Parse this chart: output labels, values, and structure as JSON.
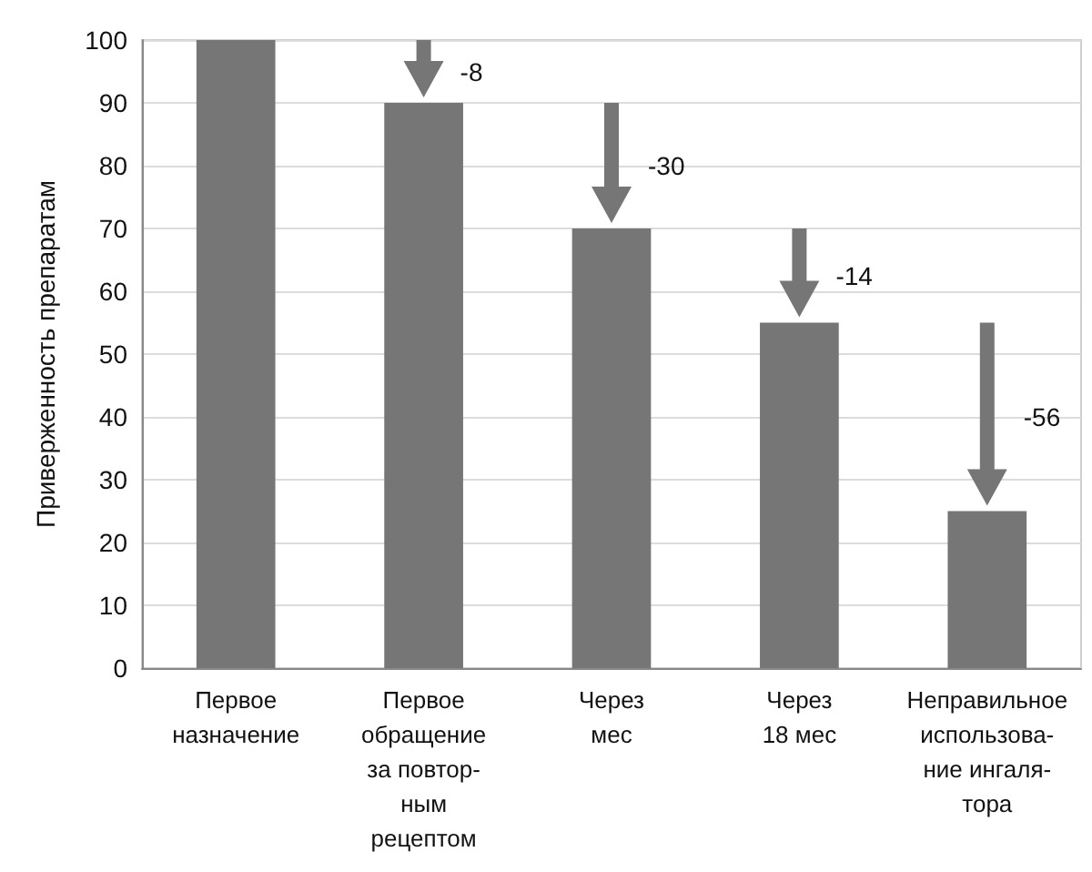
{
  "chart_data": {
    "type": "bar",
    "ylabel": "Приверженность препаратам",
    "categories": [
      "Первое\nназначение",
      "Первое\nобращение\nза повтор-\nным\nрецептом",
      "Через\nмес",
      "Через\n18 мес",
      "Неправильное\nиспользова-\nние ингаля-\nтора"
    ],
    "values": [
      100,
      90,
      70,
      55,
      25
    ],
    "color": "#767676",
    "ylim": [
      0,
      100
    ],
    "yticks": [
      0,
      10,
      20,
      30,
      40,
      50,
      60,
      70,
      80,
      90,
      100
    ],
    "grid": "y",
    "annotations": [
      "-8",
      "-30",
      "-14",
      "-56"
    ]
  }
}
